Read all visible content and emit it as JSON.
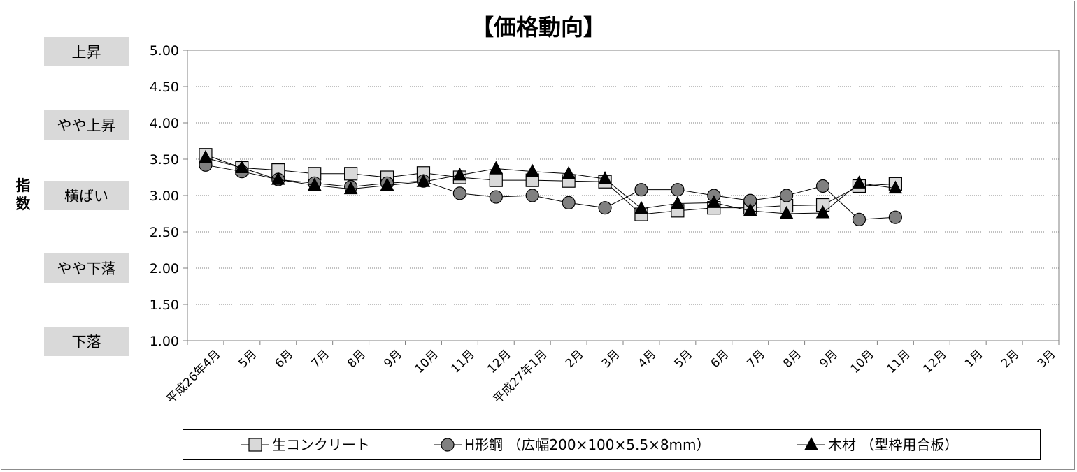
{
  "chart_data": {
    "type": "line",
    "title": "【価格動向】",
    "ylabel": "指数",
    "ylim": [
      1.0,
      5.0
    ],
    "yticks": [
      "1.00",
      "1.50",
      "2.00",
      "2.50",
      "3.00",
      "3.50",
      "4.00",
      "4.50",
      "5.00"
    ],
    "grid": true,
    "legend_position": "bottom",
    "categories": [
      "平成26年4月",
      "5月",
      "6月",
      "7月",
      "8月",
      "9月",
      "10月",
      "11月",
      "12月",
      "平成27年1月",
      "2月",
      "3月",
      "4月",
      "5月",
      "6月",
      "7月",
      "8月",
      "9月",
      "10月",
      "11月",
      "12月",
      "1月",
      "2月",
      "3月"
    ],
    "category_levels": [
      {
        "label": "上昇",
        "value": 5.0
      },
      {
        "label": "やや上昇",
        "value": 4.0
      },
      {
        "label": "横ばい",
        "value": 3.0
      },
      {
        "label": "やや下落",
        "value": 2.0
      },
      {
        "label": "下落",
        "value": 1.0
      }
    ],
    "series": [
      {
        "name": "生コンクリート",
        "marker": "square",
        "color": "#d9d9d9",
        "values": [
          3.56,
          3.38,
          3.35,
          3.3,
          3.3,
          3.25,
          3.31,
          3.25,
          3.21,
          3.21,
          3.2,
          3.19,
          2.74,
          2.79,
          2.83,
          2.83,
          2.86,
          2.87,
          3.13,
          3.16,
          null,
          null,
          null,
          null
        ]
      },
      {
        "name": "H形鋼 （広幅200×100×5.5×8mm）",
        "marker": "circle",
        "color": "#808080",
        "values": [
          3.42,
          3.33,
          3.22,
          3.17,
          3.12,
          3.17,
          3.2,
          3.03,
          2.98,
          3.0,
          2.9,
          2.83,
          3.08,
          3.08,
          3.0,
          2.93,
          3.0,
          3.13,
          2.67,
          2.7,
          null,
          null,
          null,
          null
        ]
      },
      {
        "name": "木材 （型枠用合板）",
        "marker": "triangle",
        "color": "#000000",
        "values": [
          3.52,
          3.38,
          3.22,
          3.14,
          3.09,
          3.14,
          3.19,
          3.28,
          3.37,
          3.33,
          3.3,
          3.23,
          2.82,
          2.89,
          2.9,
          2.79,
          2.75,
          2.76,
          3.17,
          3.1,
          null,
          null,
          null,
          null
        ]
      }
    ]
  }
}
